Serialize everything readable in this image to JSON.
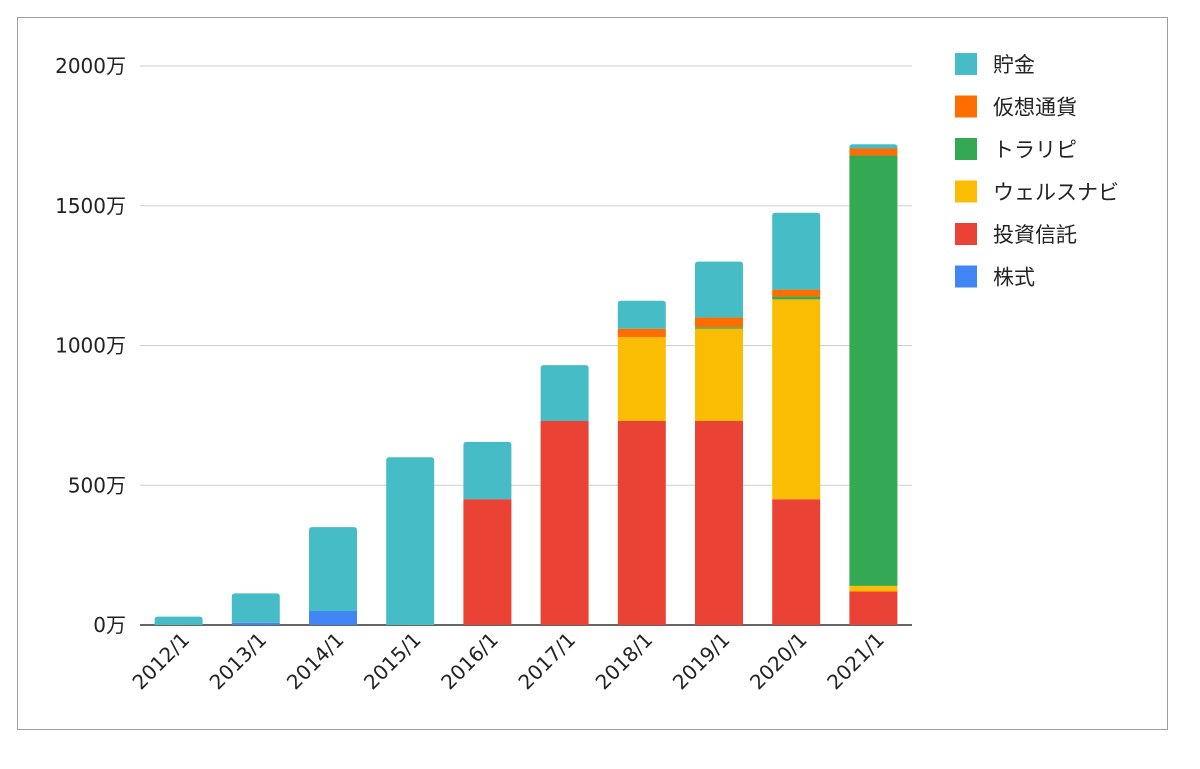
{
  "chart_data": {
    "type": "bar",
    "stacked": true,
    "title": "",
    "xlabel": "",
    "ylabel": "",
    "ylim": [
      0,
      2000
    ],
    "yticks": [
      0,
      500,
      1000,
      1500,
      2000
    ],
    "ytick_labels": [
      "0万",
      "500万",
      "1000万",
      "1500万",
      "2000万"
    ],
    "grid": true,
    "legend_position": "right",
    "categories": [
      "2012/1",
      "2013/1",
      "2014/1",
      "2015/1",
      "2016/1",
      "2017/1",
      "2018/1",
      "2019/1",
      "2020/1",
      "2021/1"
    ],
    "series": [
      {
        "name": "株式",
        "color": "#4285F4",
        "values": [
          0,
          8,
          50,
          0,
          0,
          0,
          0,
          0,
          0,
          0
        ]
      },
      {
        "name": "投資信託",
        "color": "#EA4335",
        "values": [
          0,
          0,
          0,
          0,
          450,
          730,
          730,
          730,
          450,
          120
        ]
      },
      {
        "name": "ウェルスナビ",
        "color": "#FBBC04",
        "values": [
          0,
          0,
          0,
          0,
          0,
          0,
          300,
          330,
          715,
          20
        ]
      },
      {
        "name": "トラリピ",
        "color": "#34A853",
        "values": [
          0,
          0,
          0,
          0,
          0,
          0,
          0,
          5,
          10,
          1540
        ]
      },
      {
        "name": "仮想通貨",
        "color": "#FF6D01",
        "values": [
          0,
          0,
          0,
          0,
          0,
          0,
          30,
          35,
          25,
          25
        ]
      },
      {
        "name": "貯金",
        "color": "#46BDC6",
        "values": [
          30,
          105,
          300,
          600,
          205,
          200,
          100,
          200,
          275,
          15
        ]
      }
    ],
    "legend_order": [
      "貯金",
      "仮想通貨",
      "トラリピ",
      "ウェルスナビ",
      "投資信託",
      "株式"
    ]
  }
}
